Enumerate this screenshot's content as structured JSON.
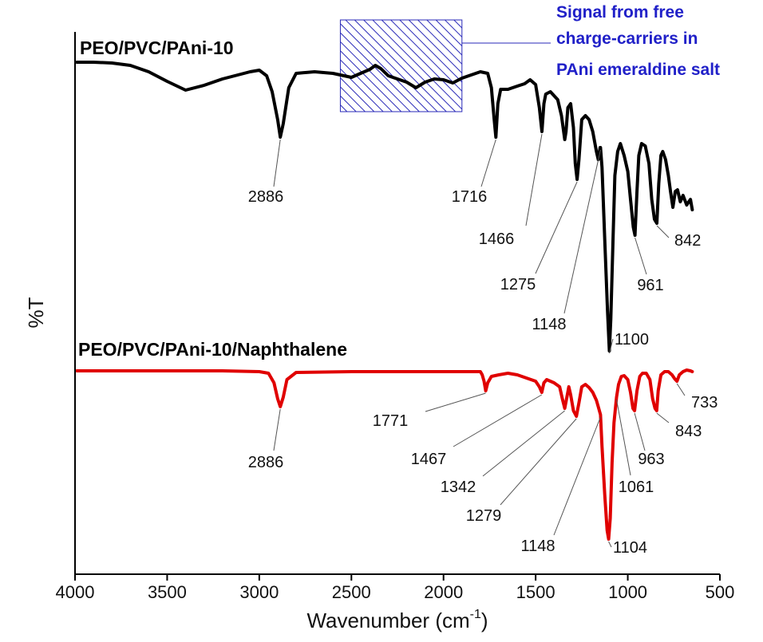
{
  "chart_data": {
    "type": "line",
    "xlabel": "Wavenumber (cm",
    "xlabel_sup": "-1",
    "xlabel_close": ")",
    "ylabel": "%T",
    "xlim": [
      4000,
      500
    ],
    "x_reversed": true,
    "grid": false,
    "x_ticks": [
      4000,
      3500,
      3000,
      2500,
      2000,
      1500,
      1000,
      500
    ],
    "annotation": {
      "lines": [
        "Signal from free",
        "charge-carriers in",
        "PAni emeraldine salt"
      ],
      "x_range": [
        2560,
        1900
      ],
      "color": "#2a2ab8"
    },
    "series": [
      {
        "name": "PEO/PVC/PAni-10",
        "color": "#000000",
        "baseline_y": 82,
        "points": [
          [
            3990,
            78
          ],
          [
            3900,
            78
          ],
          [
            3800,
            79
          ],
          [
            3700,
            82
          ],
          [
            3600,
            90
          ],
          [
            3500,
            102
          ],
          [
            3400,
            113
          ],
          [
            3300,
            107
          ],
          [
            3200,
            99
          ],
          [
            3100,
            93
          ],
          [
            3050,
            90
          ],
          [
            3000,
            88
          ],
          [
            2960,
            95
          ],
          [
            2930,
            115
          ],
          [
            2900,
            150
          ],
          [
            2886,
            172
          ],
          [
            2870,
            155
          ],
          [
            2840,
            110
          ],
          [
            2800,
            92
          ],
          [
            2700,
            90
          ],
          [
            2600,
            92
          ],
          [
            2500,
            97
          ],
          [
            2450,
            92
          ],
          [
            2400,
            87
          ],
          [
            2370,
            82
          ],
          [
            2340,
            86
          ],
          [
            2300,
            95
          ],
          [
            2250,
            99
          ],
          [
            2200,
            103
          ],
          [
            2150,
            110
          ],
          [
            2100,
            103
          ],
          [
            2050,
            99
          ],
          [
            2000,
            100
          ],
          [
            1950,
            104
          ],
          [
            1900,
            98
          ],
          [
            1850,
            94
          ],
          [
            1800,
            90
          ],
          [
            1760,
            92
          ],
          [
            1740,
            110
          ],
          [
            1725,
            150
          ],
          [
            1716,
            172
          ],
          [
            1705,
            130
          ],
          [
            1690,
            112
          ],
          [
            1650,
            112
          ],
          [
            1600,
            108
          ],
          [
            1560,
            105
          ],
          [
            1530,
            100
          ],
          [
            1500,
            106
          ],
          [
            1480,
            135
          ],
          [
            1466,
            165
          ],
          [
            1455,
            130
          ],
          [
            1445,
            118
          ],
          [
            1420,
            115
          ],
          [
            1400,
            120
          ],
          [
            1380,
            125
          ],
          [
            1360,
            145
          ],
          [
            1342,
            175
          ],
          [
            1335,
            165
          ],
          [
            1325,
            135
          ],
          [
            1310,
            130
          ],
          [
            1295,
            160
          ],
          [
            1285,
            205
          ],
          [
            1275,
            225
          ],
          [
            1265,
            200
          ],
          [
            1250,
            150
          ],
          [
            1230,
            145
          ],
          [
            1210,
            150
          ],
          [
            1190,
            165
          ],
          [
            1170,
            190
          ],
          [
            1160,
            200
          ],
          [
            1150,
            185
          ],
          [
            1148,
            185
          ],
          [
            1140,
            210
          ],
          [
            1125,
            300
          ],
          [
            1110,
            390
          ],
          [
            1100,
            440
          ],
          [
            1092,
            400
          ],
          [
            1080,
            300
          ],
          [
            1070,
            220
          ],
          [
            1055,
            190
          ],
          [
            1040,
            180
          ],
          [
            1020,
            195
          ],
          [
            1000,
            215
          ],
          [
            985,
            250
          ],
          [
            970,
            285
          ],
          [
            961,
            295
          ],
          [
            950,
            240
          ],
          [
            940,
            195
          ],
          [
            925,
            180
          ],
          [
            905,
            183
          ],
          [
            885,
            205
          ],
          [
            870,
            250
          ],
          [
            855,
            275
          ],
          [
            842,
            280
          ],
          [
            832,
            230
          ],
          [
            820,
            195
          ],
          [
            810,
            190
          ],
          [
            795,
            200
          ],
          [
            780,
            220
          ],
          [
            768,
            240
          ],
          [
            755,
            260
          ],
          [
            742,
            240
          ],
          [
            730,
            238
          ],
          [
            715,
            253
          ],
          [
            700,
            245
          ],
          [
            680,
            257
          ],
          [
            660,
            250
          ],
          [
            650,
            263
          ]
        ],
        "peak_labels": [
          {
            "label": "2886",
            "wn": 2886
          },
          {
            "label": "1716",
            "wn": 1716
          },
          {
            "label": "1466",
            "wn": 1466
          },
          {
            "label": "1275",
            "wn": 1275
          },
          {
            "label": "1148",
            "wn": 1148
          },
          {
            "label": "1100",
            "wn": 1100
          },
          {
            "label": "961",
            "wn": 961
          },
          {
            "label": "842",
            "wn": 842
          }
        ]
      },
      {
        "name": "PEO/PVC/PAni-10/Naphthalene",
        "color": "#e00000",
        "baseline_y": 465,
        "points": [
          [
            3990,
            465
          ],
          [
            3500,
            465
          ],
          [
            3200,
            465
          ],
          [
            3000,
            466
          ],
          [
            2950,
            468
          ],
          [
            2920,
            480
          ],
          [
            2900,
            500
          ],
          [
            2886,
            510
          ],
          [
            2870,
            498
          ],
          [
            2850,
            476
          ],
          [
            2800,
            467
          ],
          [
            2500,
            466
          ],
          [
            2000,
            466
          ],
          [
            1800,
            466
          ],
          [
            1790,
            470
          ],
          [
            1780,
            478
          ],
          [
            1771,
            490
          ],
          [
            1760,
            480
          ],
          [
            1740,
            472
          ],
          [
            1700,
            470
          ],
          [
            1650,
            468
          ],
          [
            1600,
            470
          ],
          [
            1550,
            474
          ],
          [
            1500,
            478
          ],
          [
            1480,
            485
          ],
          [
            1467,
            492
          ],
          [
            1455,
            480
          ],
          [
            1440,
            476
          ],
          [
            1420,
            478
          ],
          [
            1400,
            480
          ],
          [
            1370,
            485
          ],
          [
            1355,
            500
          ],
          [
            1342,
            512
          ],
          [
            1332,
            500
          ],
          [
            1320,
            485
          ],
          [
            1310,
            495
          ],
          [
            1295,
            515
          ],
          [
            1279,
            522
          ],
          [
            1265,
            505
          ],
          [
            1250,
            485
          ],
          [
            1230,
            482
          ],
          [
            1210,
            486
          ],
          [
            1190,
            492
          ],
          [
            1170,
            502
          ],
          [
            1160,
            510
          ],
          [
            1148,
            520
          ],
          [
            1140,
            560
          ],
          [
            1125,
            620
          ],
          [
            1112,
            665
          ],
          [
            1104,
            676
          ],
          [
            1095,
            650
          ],
          [
            1085,
            580
          ],
          [
            1075,
            530
          ],
          [
            1061,
            498
          ],
          [
            1050,
            482
          ],
          [
            1035,
            472
          ],
          [
            1020,
            471
          ],
          [
            1000,
            476
          ],
          [
            985,
            492
          ],
          [
            972,
            512
          ],
          [
            963,
            515
          ],
          [
            950,
            490
          ],
          [
            935,
            472
          ],
          [
            920,
            468
          ],
          [
            900,
            468
          ],
          [
            880,
            476
          ],
          [
            865,
            500
          ],
          [
            852,
            512
          ],
          [
            843,
            515
          ],
          [
            835,
            490
          ],
          [
            820,
            470
          ],
          [
            800,
            466
          ],
          [
            780,
            466
          ],
          [
            760,
            470
          ],
          [
            745,
            475
          ],
          [
            733,
            478
          ],
          [
            720,
            470
          ],
          [
            700,
            466
          ],
          [
            680,
            464
          ],
          [
            660,
            465
          ],
          [
            650,
            466
          ]
        ],
        "peak_labels": [
          {
            "label": "2886",
            "wn": 2886
          },
          {
            "label": "1771",
            "wn": 1771
          },
          {
            "label": "1467",
            "wn": 1467
          },
          {
            "label": "1342",
            "wn": 1342
          },
          {
            "label": "1279",
            "wn": 1279
          },
          {
            "label": "1148",
            "wn": 1148
          },
          {
            "label": "1104",
            "wn": 1104
          },
          {
            "label": "1061",
            "wn": 1061
          },
          {
            "label": "963",
            "wn": 963
          },
          {
            "label": "843",
            "wn": 843
          },
          {
            "label": "733",
            "wn": 733
          }
        ]
      }
    ]
  }
}
